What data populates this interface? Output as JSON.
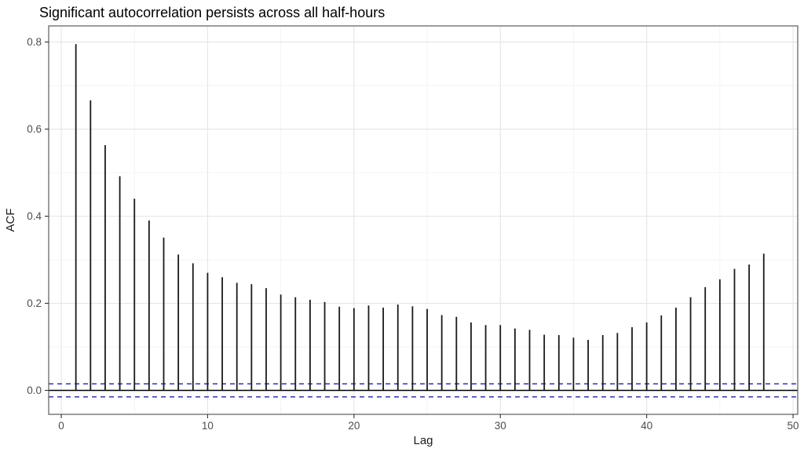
{
  "chart_data": {
    "type": "bar",
    "subtype": "acf-stick-plot",
    "title": "Significant autocorrelation persists across all half-hours",
    "xlabel": "Lag",
    "ylabel": "ACF",
    "x": [
      1,
      2,
      3,
      4,
      5,
      6,
      7,
      8,
      9,
      10,
      11,
      12,
      13,
      14,
      15,
      16,
      17,
      18,
      19,
      20,
      21,
      22,
      23,
      24,
      25,
      26,
      27,
      28,
      29,
      30,
      31,
      32,
      33,
      34,
      35,
      36,
      37,
      38,
      39,
      40,
      41,
      42,
      43,
      44,
      45,
      46,
      47,
      48
    ],
    "values": [
      0.795,
      0.666,
      0.563,
      0.492,
      0.44,
      0.39,
      0.351,
      0.312,
      0.292,
      0.27,
      0.26,
      0.247,
      0.244,
      0.235,
      0.22,
      0.214,
      0.208,
      0.203,
      0.192,
      0.189,
      0.195,
      0.19,
      0.197,
      0.193,
      0.187,
      0.173,
      0.169,
      0.156,
      0.15,
      0.15,
      0.142,
      0.139,
      0.128,
      0.127,
      0.121,
      0.116,
      0.127,
      0.132,
      0.145,
      0.156,
      0.172,
      0.19,
      0.214,
      0.237,
      0.255,
      0.279,
      0.289,
      0.314
    ],
    "confidence_bands": {
      "upper": 0.015,
      "lower": -0.015,
      "style": "dashed"
    },
    "zero_line": 0,
    "xlim": [
      -0.86,
      50.32
    ],
    "ylim": [
      -0.055,
      0.837
    ],
    "x_major_ticks": [
      0,
      10,
      20,
      30,
      40,
      50
    ],
    "x_tick_labels": [
      "0",
      "10",
      "20",
      "30",
      "40",
      "50"
    ],
    "x_minor_gridlines": [
      5,
      15,
      25,
      35,
      45
    ],
    "y_major_ticks": [
      0,
      0.2,
      0.4,
      0.6,
      0.8
    ],
    "y_tick_labels": [
      "0.0",
      "0.2",
      "0.4",
      "0.6",
      "0.8"
    ],
    "y_minor_gridlines": [
      0.1,
      0.3,
      0.5,
      0.7
    ],
    "grid": "on",
    "legend": "none",
    "colors": {
      "bar": "#1a1a1a",
      "zero_line": "#000000",
      "confidence_line": "#3333b3",
      "grid_major": "#e5e5e5",
      "grid_minor": "#f3f3f3",
      "panel_border": "#5c5c5c",
      "tick_mark": "#333333",
      "tick_label": "#4d4d4d",
      "axis_title": "#1a1a1a",
      "title": "#000000",
      "panel_background": "#ffffff"
    }
  }
}
